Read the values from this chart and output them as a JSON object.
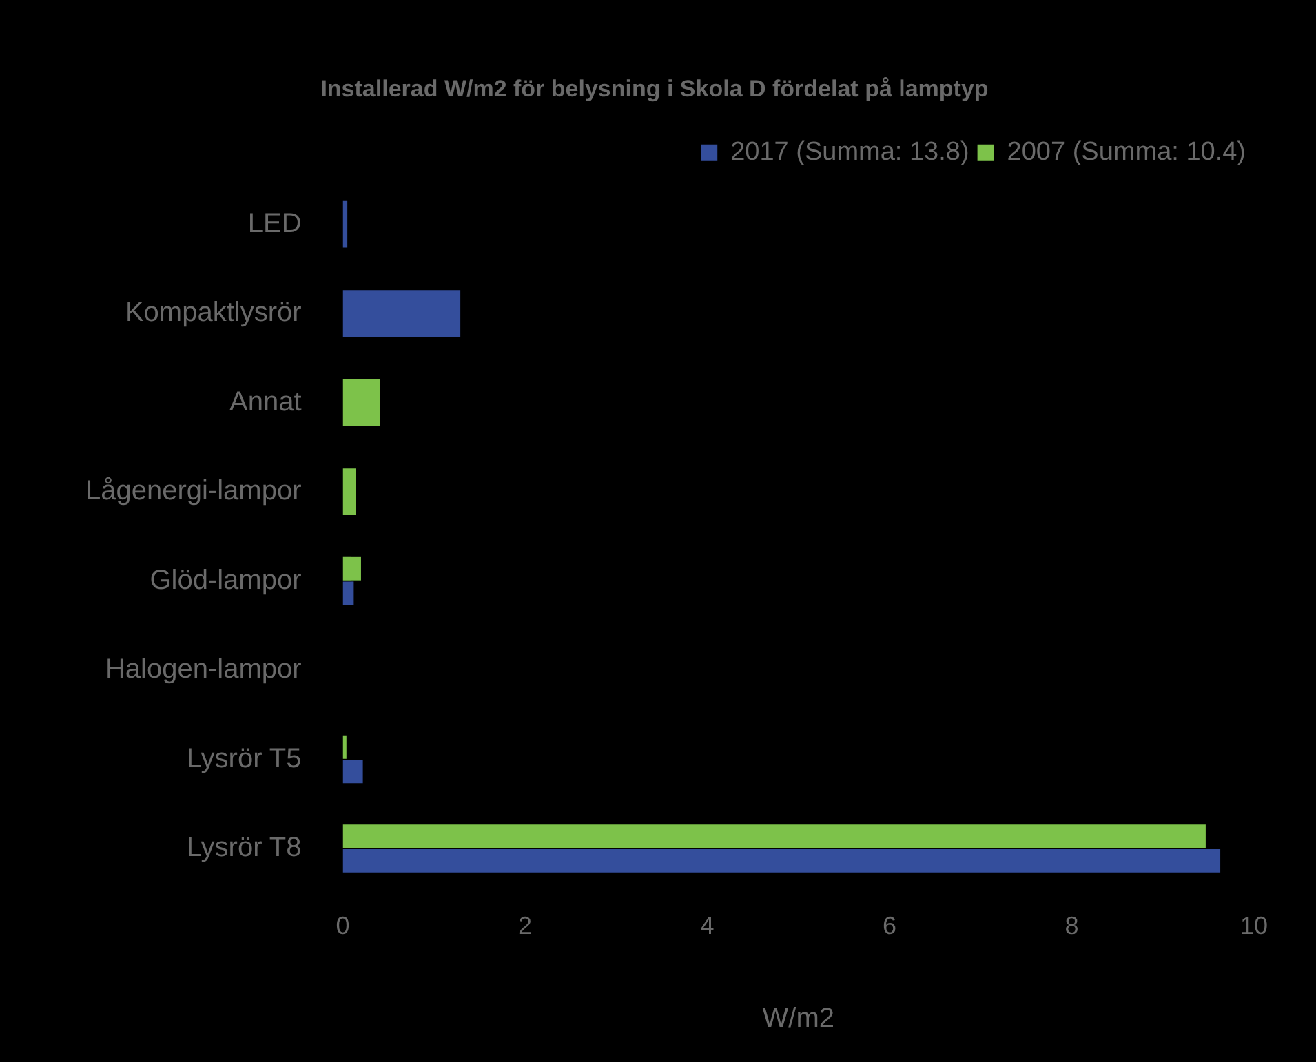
{
  "chart_data": {
    "type": "bar",
    "orientation": "horizontal",
    "title": "Installerad W/m2 för belysning i Skola D fördelat på lamptyp",
    "xlabel": "W/m2",
    "categories": [
      "LED",
      "Kompaktlysrör",
      "Annat",
      "Lågenergi-lampor",
      "Glöd-lampor",
      "Halogen-lampor",
      "Lysrör T5",
      "Lysrör T8"
    ],
    "series": [
      {
        "name": "2017 (Summa: 13.8)",
        "color": "#344e9c",
        "values": [
          0.05,
          1.29,
          null,
          null,
          0.12,
          null,
          0.22,
          9.63
        ]
      },
      {
        "name": "2007 (Summa: 10.4)",
        "color": "#7dc24a",
        "values": [
          null,
          null,
          0.41,
          0.14,
          0.2,
          null,
          0.04,
          9.47
        ]
      }
    ],
    "xlim": [
      0,
      10
    ],
    "xticks": [
      0,
      2,
      4,
      6,
      8,
      10
    ],
    "grid": false,
    "legend": "top right"
  }
}
